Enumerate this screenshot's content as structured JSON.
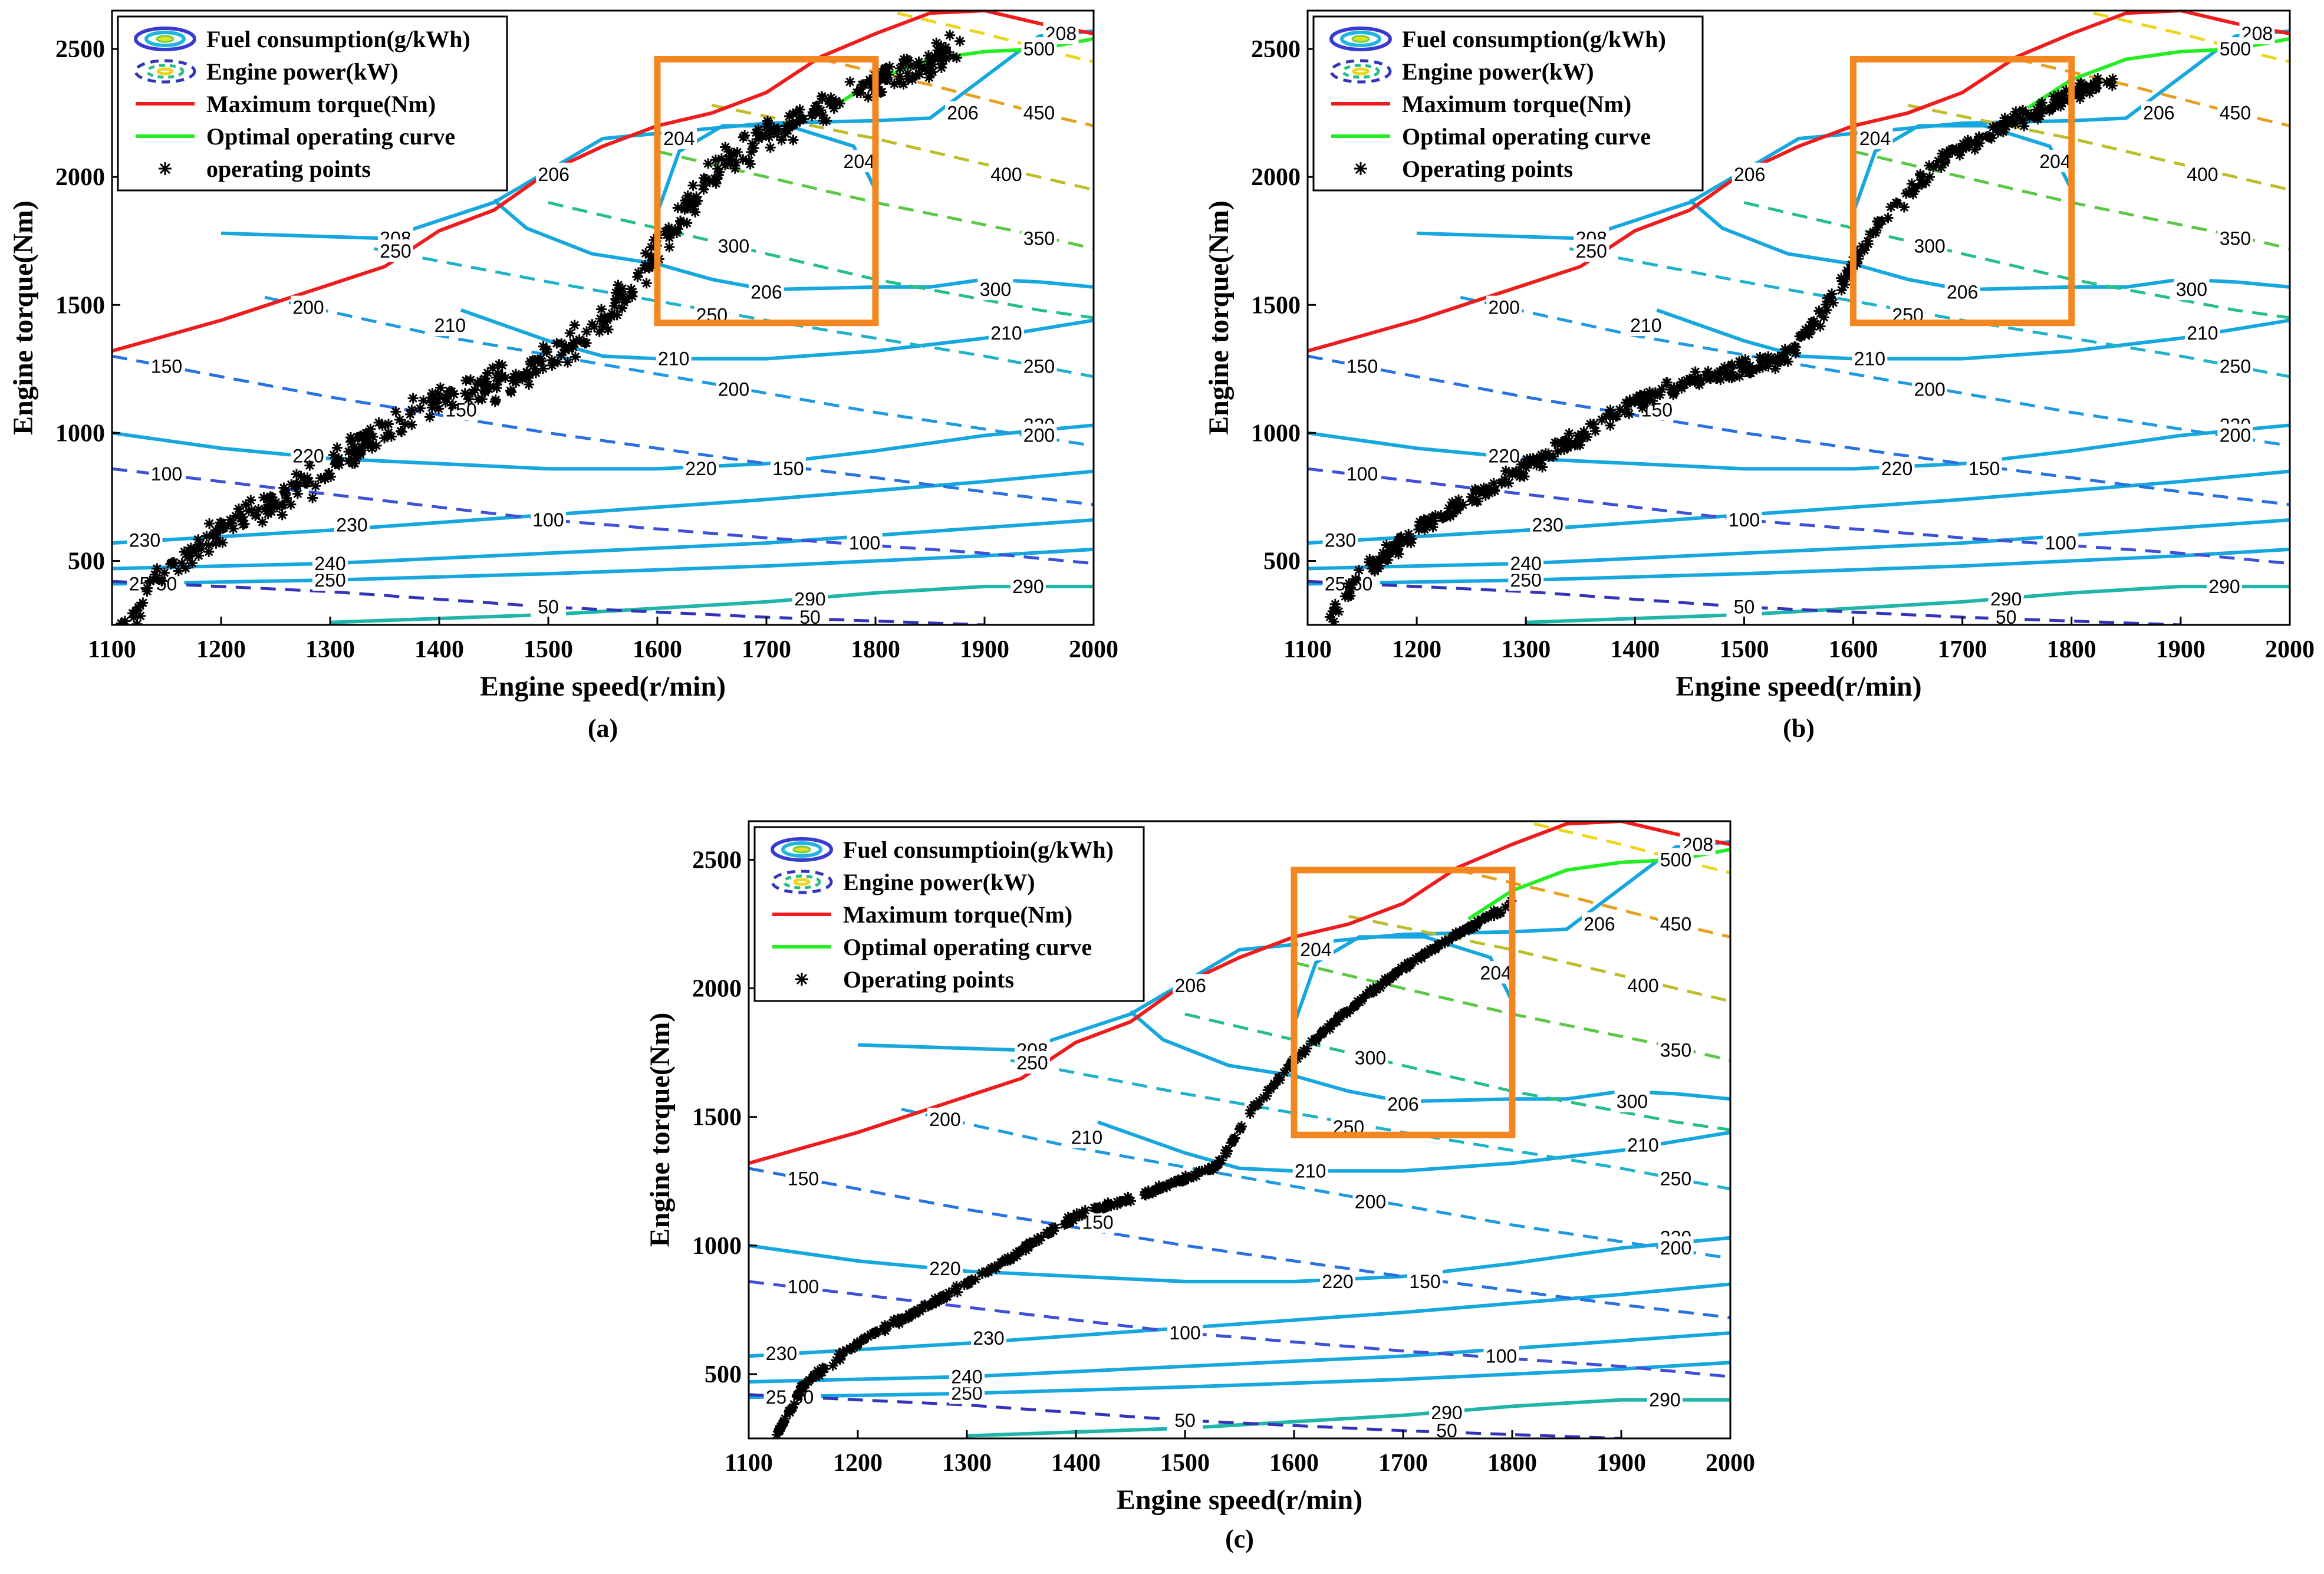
{
  "figure": {
    "panels": [
      "a",
      "b",
      "c"
    ]
  },
  "chart_data": [
    {
      "type": "line",
      "caption": "(a)",
      "xlabel": "Engine speed(r/min)",
      "ylabel": "Engine torque(Nm)",
      "xlim": [
        1100,
        2000
      ],
      "ylim": [
        250,
        2650
      ],
      "xticks": [
        1100,
        1200,
        1300,
        1400,
        1500,
        1600,
        1700,
        1800,
        1900,
        2000
      ],
      "yticks": [
        500,
        1000,
        1500,
        2000,
        2500
      ],
      "legend": [
        "Fuel consumption(g/kWh)",
        "Engine power(kW)",
        "Maximum torque(Nm)",
        "Optimal operating curve",
        "operating points"
      ],
      "legend_position": "top-left",
      "highlight_box": {
        "x": [
          1600,
          1800
        ],
        "y": [
          1430,
          2460
        ]
      },
      "scatter_style": "dispersed",
      "series": [
        {
          "name": "Maximum torque(Nm)",
          "color": "#ee1c1c",
          "x": [
            1100,
            1150,
            1200,
            1250,
            1300,
            1350,
            1400,
            1450,
            1500,
            1550,
            1600,
            1650,
            1700,
            1750,
            1800,
            1850,
            1900,
            1950,
            2000
          ],
          "y": [
            1320,
            1380,
            1440,
            1510,
            1580,
            1650,
            1790,
            1870,
            2020,
            2120,
            2200,
            2250,
            2330,
            2470,
            2560,
            2640,
            2650,
            2600,
            2560
          ]
        },
        {
          "name": "Optimal operating curve",
          "color": "#22ee22",
          "x": [
            1760,
            1800,
            1850,
            1900,
            1950,
            2000
          ],
          "y": [
            2270,
            2380,
            2460,
            2490,
            2500,
            2540
          ]
        },
        {
          "name": "operating points",
          "color": "#000000",
          "x": [
            1110,
            1140,
            1200,
            1300,
            1380,
            1450,
            1500,
            1550,
            1600,
            1650,
            1700,
            1750,
            1800,
            1850,
            1880
          ],
          "y": [
            250,
            420,
            620,
            860,
            1100,
            1190,
            1280,
            1430,
            1720,
            2010,
            2180,
            2260,
            2370,
            2450,
            2500
          ]
        }
      ]
    },
    {
      "type": "line",
      "caption": "(b)",
      "xlabel": "Engine speed(r/min)",
      "ylabel": "Engine torque(Nm)",
      "xlim": [
        1100,
        2000
      ],
      "ylim": [
        250,
        2650
      ],
      "xticks": [
        1100,
        1200,
        1300,
        1400,
        1500,
        1600,
        1700,
        1800,
        1900,
        2000
      ],
      "yticks": [
        500,
        1000,
        1500,
        2000,
        2500
      ],
      "legend": [
        "Fuel consumption(g/kWh)",
        "Engine power(kW)",
        "Maximum torque(Nm)",
        "Optimal operating curve",
        "Operating points"
      ],
      "legend_position": "top-left",
      "highlight_box": {
        "x": [
          1600,
          1800
        ],
        "y": [
          1430,
          2460
        ]
      },
      "scatter_style": "banded",
      "series": [
        {
          "name": "Maximum torque(Nm)",
          "color": "#ee1c1c",
          "x": [
            1100,
            1150,
            1200,
            1250,
            1300,
            1350,
            1400,
            1450,
            1500,
            1550,
            1600,
            1650,
            1700,
            1750,
            1800,
            1850,
            1900,
            1950,
            2000
          ],
          "y": [
            1320,
            1380,
            1440,
            1510,
            1580,
            1650,
            1790,
            1870,
            2020,
            2120,
            2200,
            2250,
            2330,
            2470,
            2560,
            2640,
            2650,
            2600,
            2560
          ]
        },
        {
          "name": "Optimal operating curve",
          "color": "#22ee22",
          "x": [
            1760,
            1800,
            1850,
            1900,
            1950,
            2000
          ],
          "y": [
            2270,
            2380,
            2460,
            2490,
            2500,
            2540
          ]
        },
        {
          "name": "Operating points",
          "color": "#000000",
          "x": [
            1120,
            1150,
            1200,
            1300,
            1400,
            1450,
            1500,
            1540,
            1580,
            1620,
            1680,
            1740,
            1800,
            1840
          ],
          "y": [
            280,
            450,
            620,
            860,
            1120,
            1200,
            1250,
            1300,
            1520,
            1800,
            2060,
            2200,
            2320,
            2400
          ]
        }
      ]
    },
    {
      "type": "line",
      "caption": "(c)",
      "xlabel": "Engine speed(r/min)",
      "ylabel": "Engine torque(Nm)",
      "xlim": [
        1100,
        2000
      ],
      "ylim": [
        250,
        2650
      ],
      "xticks": [
        1100,
        1200,
        1300,
        1400,
        1500,
        1600,
        1700,
        1800,
        1900,
        2000
      ],
      "yticks": [
        500,
        1000,
        1500,
        2000,
        2500
      ],
      "legend": [
        "Fuel consumptioin(g/kWh)",
        "Engine power(kW)",
        "Maximum torque(Nm)",
        "Optimal operating curve",
        "Operating points"
      ],
      "legend_position": "top-left",
      "highlight_box": {
        "x": [
          1600,
          1800
        ],
        "y": [
          1430,
          2460
        ]
      },
      "scatter_style": "tight",
      "series": [
        {
          "name": "Maximum torque(Nm)",
          "color": "#ee1c1c",
          "x": [
            1100,
            1150,
            1200,
            1250,
            1300,
            1350,
            1400,
            1450,
            1500,
            1550,
            1600,
            1650,
            1700,
            1750,
            1800,
            1850,
            1900,
            1950,
            2000
          ],
          "y": [
            1320,
            1380,
            1440,
            1510,
            1580,
            1650,
            1790,
            1870,
            2020,
            2120,
            2200,
            2250,
            2330,
            2470,
            2560,
            2640,
            2650,
            2600,
            2560
          ]
        },
        {
          "name": "Optimal operating curve",
          "color": "#22ee22",
          "x": [
            1760,
            1800,
            1850,
            1900,
            1950,
            2000
          ],
          "y": [
            2270,
            2380,
            2460,
            2490,
            2500,
            2540
          ]
        },
        {
          "name": "Operating points",
          "color": "#000000",
          "x": [
            1125,
            1150,
            1200,
            1300,
            1380,
            1400,
            1450,
            1500,
            1530,
            1560,
            1600,
            1650,
            1700,
            1750,
            1800
          ],
          "y": [
            260,
            460,
            620,
            850,
            1060,
            1120,
            1180,
            1260,
            1310,
            1520,
            1720,
            1920,
            2080,
            2210,
            2330
          ]
        }
      ]
    }
  ],
  "contours": {
    "fuel": [
      {
        "label": "290",
        "color": "#1fb5a8",
        "x": [
          1300,
          1500,
          1600,
          1700,
          1800,
          1900,
          2000
        ],
        "y": [
          260,
          290,
          315,
          340,
          375,
          400,
          400
        ],
        "label_at": [
          [
            1740,
            350
          ],
          [
            1940,
            400
          ]
        ]
      },
      {
        "label": "250",
        "color": "#15a7de",
        "x": [
          1100,
          1300,
          1500,
          1700,
          1900,
          2000
        ],
        "y": [
          410,
          425,
          450,
          480,
          520,
          545
        ],
        "label_at": [
          [
            1130,
            410
          ],
          [
            1300,
            425
          ]
        ]
      },
      {
        "label": "240",
        "color": "#15a7de",
        "x": [
          1100,
          1300,
          1500,
          1700,
          1900,
          2000
        ],
        "y": [
          470,
          490,
          530,
          570,
          630,
          660
        ],
        "label_at": [
          [
            1300,
            490
          ]
        ]
      },
      {
        "label": "230",
        "color": "#15a7de",
        "x": [
          1100,
          1300,
          1500,
          1700,
          1900,
          2000
        ],
        "y": [
          570,
          620,
          680,
          740,
          810,
          850
        ],
        "label_at": [
          [
            1130,
            580
          ],
          [
            1320,
            640
          ]
        ]
      },
      {
        "label": "220",
        "color": "#15a7de",
        "x": [
          1100,
          1200,
          1300,
          1400,
          1500,
          1600,
          1700,
          1800,
          1900,
          2000
        ],
        "y": [
          1000,
          940,
          900,
          880,
          860,
          860,
          880,
          930,
          990,
          1030
        ],
        "label_at": [
          [
            1280,
            910
          ],
          [
            1640,
            860
          ],
          [
            1950,
            1030
          ]
        ]
      },
      {
        "label": "210",
        "color": "#15a7de",
        "x": [
          1420,
          1500,
          1550,
          1600,
          1700,
          1800,
          1900,
          2000
        ],
        "y": [
          1480,
          1360,
          1300,
          1290,
          1290,
          1320,
          1370,
          1440
        ],
        "label_at": [
          [
            1410,
            1420
          ],
          [
            1615,
            1290
          ],
          [
            1920,
            1390
          ]
        ]
      },
      {
        "label": "208",
        "color": "#15a7de",
        "x": [
          1200,
          1350,
          1450,
          1550,
          1700,
          1800,
          1850,
          1950,
          2000
        ],
        "y": [
          1780,
          1760,
          1900,
          2150,
          2210,
          2220,
          2230,
          2550,
          2570
        ],
        "label_at": [
          [
            1360,
            1760
          ],
          [
            1970,
            2560
          ]
        ]
      },
      {
        "label": "206",
        "color": "#15a7de",
        "x": [
          1450,
          1480,
          1540,
          1600,
          1650,
          1700,
          1800,
          1850,
          1900,
          1950,
          2000
        ],
        "y": [
          1910,
          1800,
          1700,
          1660,
          1600,
          1560,
          1570,
          1570,
          1600,
          1590,
          1570
        ],
        "label_at": [
          [
            1505,
            2010
          ],
          [
            1700,
            1550
          ],
          [
            1880,
            2250
          ]
        ]
      },
      {
        "label": "204",
        "color": "#15a7de",
        "x": [
          1600,
          1620,
          1660,
          1720,
          1780,
          1800
        ],
        "y": [
          1860,
          2100,
          2200,
          2200,
          2120,
          1950
        ],
        "label_at": [
          [
            1620,
            2150
          ],
          [
            1785,
            2060
          ]
        ]
      }
    ],
    "power": [
      {
        "label": "50",
        "color": "#3434b8",
        "x": [
          1100,
          1300,
          1500,
          1700,
          1900
        ],
        "y": [
          420,
          380,
          320,
          280,
          250
        ],
        "label_at": [
          [
            1150,
            410
          ],
          [
            1500,
            320
          ],
          [
            1740,
            280
          ]
        ]
      },
      {
        "label": "100",
        "color": "#3d50d6",
        "x": [
          1100,
          1300,
          1500,
          1700,
          1900,
          2000
        ],
        "y": [
          860,
          760,
          660,
          590,
          530,
          490
        ],
        "label_at": [
          [
            1150,
            840
          ],
          [
            1500,
            660
          ],
          [
            1790,
            570
          ]
        ]
      },
      {
        "label": "150",
        "color": "#2a71e0",
        "x": [
          1100,
          1300,
          1500,
          1700,
          1900,
          2000
        ],
        "y": [
          1300,
          1140,
          1000,
          880,
          770,
          720
        ],
        "label_at": [
          [
            1150,
            1260
          ],
          [
            1420,
            1090
          ],
          [
            1720,
            860
          ]
        ]
      },
      {
        "label": "200",
        "color": "#1f9ae0",
        "x": [
          1240,
          1400,
          1600,
          1800,
          2000
        ],
        "y": [
          1530,
          1380,
          1230,
          1080,
          950
        ],
        "label_at": [
          [
            1280,
            1490
          ],
          [
            1670,
            1170
          ],
          [
            1950,
            990
          ]
        ]
      },
      {
        "label": "250",
        "color": "#1fb2c8",
        "x": [
          1340,
          1500,
          1700,
          1900,
          2000
        ],
        "y": [
          1720,
          1590,
          1440,
          1300,
          1220
        ],
        "label_at": [
          [
            1360,
            1710
          ],
          [
            1650,
            1460
          ],
          [
            1950,
            1260
          ]
        ]
      },
      {
        "label": "300",
        "color": "#26bf86",
        "x": [
          1500,
          1650,
          1800,
          1950,
          2000
        ],
        "y": [
          1900,
          1750,
          1600,
          1480,
          1450
        ],
        "label_at": [
          [
            1670,
            1730
          ],
          [
            1910,
            1560
          ]
        ]
      },
      {
        "label": "350",
        "color": "#5cc745",
        "x": [
          1600,
          1800,
          1950,
          2000
        ],
        "y": [
          2100,
          1900,
          1770,
          1720
        ],
        "label_at": [
          [
            1950,
            1760
          ]
        ]
      },
      {
        "label": "400",
        "color": "#bdbd2a",
        "x": [
          1650,
          1800,
          1950,
          2000
        ],
        "y": [
          2280,
          2150,
          2000,
          1950
        ],
        "label_at": [
          [
            1920,
            2010
          ]
        ]
      },
      {
        "label": "450",
        "color": "#e6a020",
        "x": [
          1750,
          1850,
          1950,
          2000
        ],
        "y": [
          2460,
          2360,
          2250,
          2200
        ],
        "label_at": [
          [
            1950,
            2250
          ]
        ]
      },
      {
        "label": "500",
        "color": "#ecd51a",
        "x": [
          1820,
          1900,
          1980,
          2000
        ],
        "y": [
          2640,
          2560,
          2470,
          2450
        ],
        "label_at": [
          [
            1950,
            2500
          ]
        ]
      }
    ]
  }
}
